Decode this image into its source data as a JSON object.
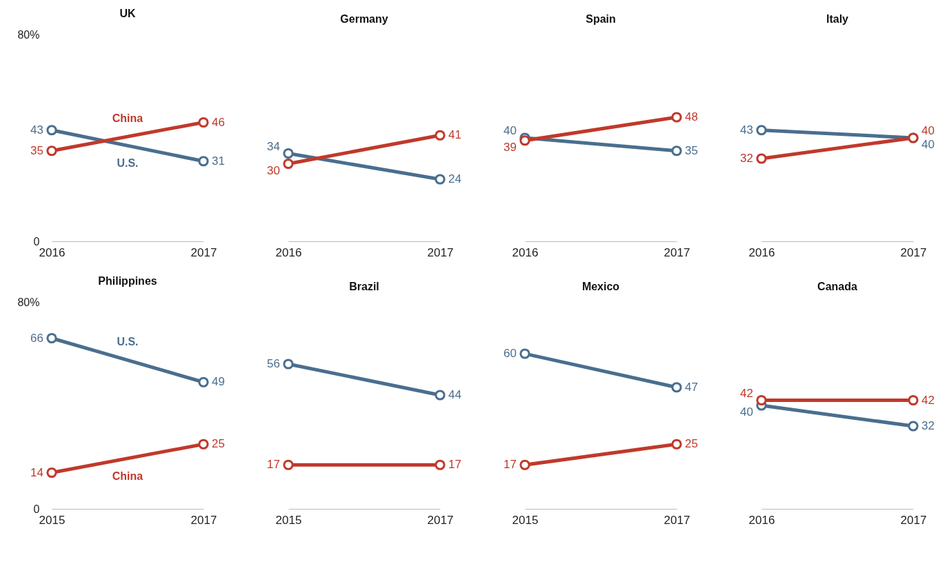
{
  "chart_data": [
    {
      "type": "line",
      "title": "UK",
      "categories": [
        "2016",
        "2017"
      ],
      "ylim": [
        0,
        80
      ],
      "yticks": [
        0,
        {
          "value": 80,
          "label": "80%"
        }
      ],
      "data_labels": true,
      "marker": "circle",
      "series": [
        {
          "name": "U.S.",
          "color": "#4a6e8e",
          "values": [
            43,
            31
          ]
        },
        {
          "name": "China",
          "color": "#c0392b",
          "values": [
            35,
            46
          ]
        }
      ]
    },
    {
      "type": "line",
      "title": "Germany",
      "categories": [
        "2016",
        "2017"
      ],
      "ylim": [
        0,
        80
      ],
      "tick_labels": "x",
      "data_labels": true,
      "marker": "circle",
      "series": [
        {
          "color": "#4a6e8e",
          "values": [
            34,
            24
          ]
        },
        {
          "color": "#c0392b",
          "values": [
            30,
            41
          ]
        }
      ]
    },
    {
      "type": "line",
      "title": "Spain",
      "categories": [
        "2016",
        "2017"
      ],
      "ylim": [
        0,
        80
      ],
      "tick_labels": "x",
      "data_labels": true,
      "marker": "circle",
      "series": [
        {
          "color": "#4a6e8e",
          "values": [
            40,
            35
          ]
        },
        {
          "color": "#c0392b",
          "values": [
            39,
            48
          ]
        }
      ]
    },
    {
      "type": "line",
      "title": "Italy",
      "categories": [
        "2016",
        "2017"
      ],
      "ylim": [
        0,
        80
      ],
      "tick_labels": "x",
      "data_labels": true,
      "marker": "circle",
      "series": [
        {
          "color": "#4a6e8e",
          "values": [
            43,
            40
          ]
        },
        {
          "color": "#c0392b",
          "values": [
            32,
            40
          ]
        }
      ]
    },
    {
      "type": "line",
      "title": "Philippines",
      "categories": [
        "2015",
        "2017"
      ],
      "ylim": [
        0,
        80
      ],
      "yticks": [
        0,
        {
          "value": 80,
          "label": "80%"
        }
      ],
      "data_labels": true,
      "marker": "circle",
      "series": [
        {
          "name": "U.S.",
          "color": "#4a6e8e",
          "values": [
            66,
            49
          ]
        },
        {
          "name": "China",
          "color": "#c0392b",
          "values": [
            14,
            25
          ]
        }
      ]
    },
    {
      "type": "line",
      "title": "Brazil",
      "categories": [
        "2015",
        "2017"
      ],
      "ylim": [
        0,
        80
      ],
      "tick_labels": "x",
      "data_labels": true,
      "marker": "circle",
      "series": [
        {
          "color": "#4a6e8e",
          "values": [
            56,
            44
          ]
        },
        {
          "color": "#c0392b",
          "values": [
            17,
            17
          ]
        }
      ]
    },
    {
      "type": "line",
      "title": "Mexico",
      "categories": [
        "2015",
        "2017"
      ],
      "ylim": [
        0,
        80
      ],
      "tick_labels": "x",
      "data_labels": true,
      "marker": "circle",
      "series": [
        {
          "color": "#4a6e8e",
          "values": [
            60,
            47
          ]
        },
        {
          "color": "#c0392b",
          "values": [
            17,
            25
          ]
        }
      ]
    },
    {
      "type": "line",
      "title": "Canada",
      "categories": [
        "2016",
        "2017"
      ],
      "ylim": [
        0,
        80
      ],
      "tick_labels": "x",
      "data_labels": true,
      "marker": "circle",
      "series": [
        {
          "color": "#4a6e8e",
          "values": [
            40,
            32
          ]
        },
        {
          "color": "#c0392b",
          "values": [
            42,
            42
          ]
        }
      ]
    }
  ]
}
